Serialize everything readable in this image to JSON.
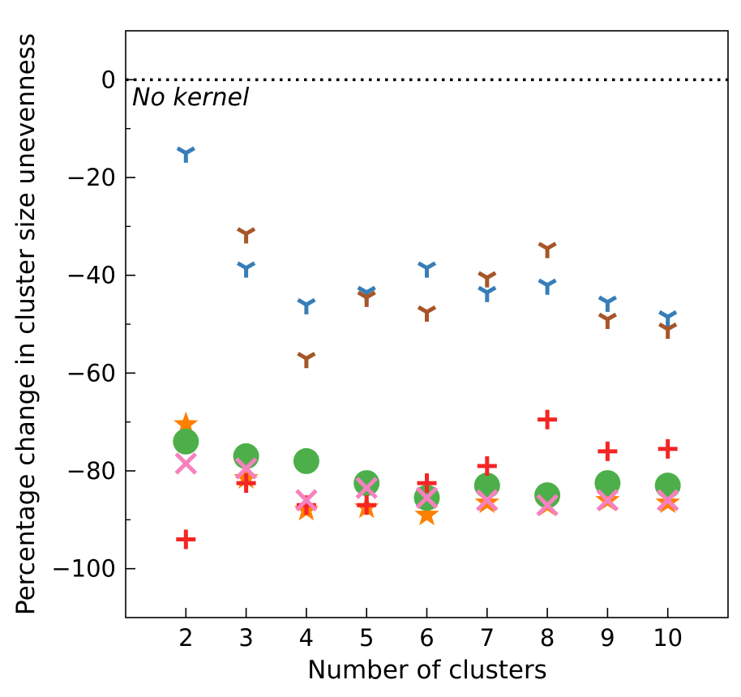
{
  "chart_data": {
    "type": "scatter",
    "title": "",
    "xlabel": "Number of clusters",
    "ylabel": "Percentage change in cluster size unevenness",
    "xlim": [
      1,
      11
    ],
    "ylim": [
      -110,
      10
    ],
    "xticks": [
      2,
      3,
      4,
      5,
      6,
      7,
      8,
      9,
      10
    ],
    "yticks": [
      0,
      -20,
      -40,
      -60,
      -80,
      -100
    ],
    "yminor_ticks": [
      -10,
      -30,
      -50,
      -70,
      -90
    ],
    "reference_line": {
      "y": 0,
      "style": "dotted",
      "label": "No kernel"
    },
    "grid": false,
    "series": [
      {
        "marker": "tri-down",
        "color": "#377eb8",
        "x": [
          2,
          3,
          4,
          5,
          6,
          7,
          8,
          9,
          10
        ],
        "values": [
          -15,
          -38.5,
          -46,
          -43.5,
          -38.5,
          -43.5,
          -42,
          -45.5,
          -48.5
        ]
      },
      {
        "marker": "tri-down",
        "color": "#a65628",
        "x": [
          2,
          3,
          4,
          5,
          6,
          7,
          8,
          9,
          10
        ],
        "values": [
          -74.5,
          -31.5,
          -57,
          -44.5,
          -47.5,
          -40.5,
          -34.5,
          -49,
          -51
        ]
      },
      {
        "marker": "star",
        "color": "#ff7f00",
        "x": [
          2,
          3,
          4,
          5,
          6,
          7,
          8,
          9,
          10
        ],
        "values": [
          -70.5,
          -81.5,
          -88,
          -87.5,
          -89,
          -86.5,
          -87,
          -86,
          -86.5
        ]
      },
      {
        "marker": "circle",
        "color": "#4daf4a",
        "x": [
          2,
          3,
          4,
          5,
          6,
          7,
          8,
          9,
          10
        ],
        "values": [
          -74,
          -77,
          -78,
          -82.5,
          -85.5,
          -83,
          -85,
          -82.5,
          -83
        ]
      },
      {
        "marker": "plus",
        "color": "#f32525",
        "x": [
          2,
          3,
          4,
          5,
          6,
          7,
          8,
          9,
          10
        ],
        "values": [
          -94,
          -82.5,
          -87,
          -87,
          -82.5,
          -79,
          -69.5,
          -76,
          -75.5
        ]
      },
      {
        "marker": "x",
        "color": "#f781bf",
        "x": [
          2,
          3,
          4,
          5,
          6,
          7,
          8,
          9,
          10
        ],
        "values": [
          -78.5,
          -79.5,
          -86,
          -83.5,
          -85.5,
          -86,
          -87,
          -86,
          -86
        ]
      }
    ]
  }
}
